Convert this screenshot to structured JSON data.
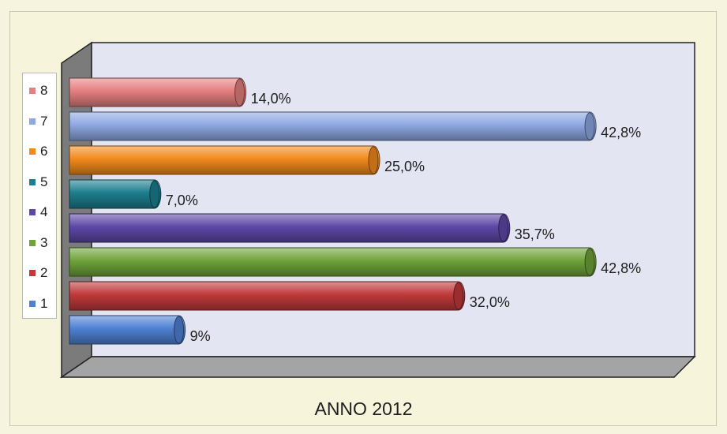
{
  "chart_data": {
    "type": "bar",
    "orientation": "horizontal",
    "style": "3d-cylinder",
    "caption": "ANNO 2012",
    "xlim": [
      0,
      50
    ],
    "grid": false,
    "legend_position": "left",
    "series": [
      {
        "name": "1",
        "value": 9,
        "label": "9%",
        "color": "#4f81d3"
      },
      {
        "name": "2",
        "value": 32.0,
        "label": "32,0%",
        "color": "#c0393b"
      },
      {
        "name": "3",
        "value": 42.8,
        "label": "42,8%",
        "color": "#6fa33a"
      },
      {
        "name": "4",
        "value": 35.7,
        "label": "35,7%",
        "color": "#5e48a6"
      },
      {
        "name": "5",
        "value": 7.0,
        "label": "7,0%",
        "color": "#1c7e8e"
      },
      {
        "name": "6",
        "value": 25.0,
        "label": "25,0%",
        "color": "#f28a1c"
      },
      {
        "name": "7",
        "value": 42.8,
        "label": "42,8%",
        "color": "#8ea8e2"
      },
      {
        "name": "8",
        "value": 14.0,
        "label": "14,0%",
        "color": "#e57f80"
      }
    ]
  }
}
